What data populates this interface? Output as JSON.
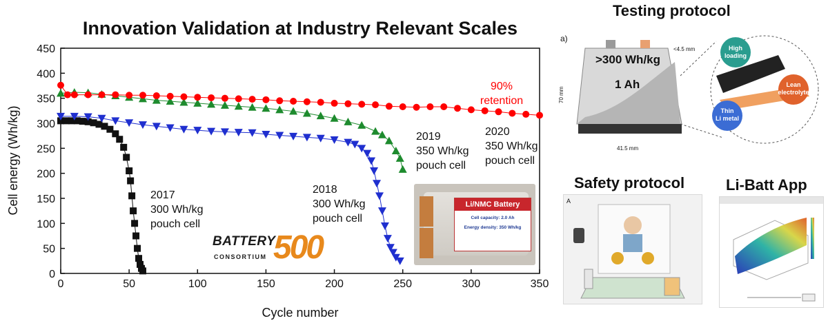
{
  "chart_data": {
    "type": "scatter",
    "title": "Innovation Validation at Industry Relevant Scales",
    "xlabel": "Cycle number",
    "ylabel": "Cell energy (Wh/kg)",
    "xlim": [
      0,
      350
    ],
    "ylim": [
      0,
      450
    ],
    "xticks": [
      0,
      50,
      100,
      150,
      200,
      250,
      300,
      350
    ],
    "yticks": [
      0,
      50,
      100,
      150,
      200,
      250,
      300,
      350,
      400,
      450
    ],
    "grid": false,
    "series": [
      {
        "label": [
          "2017",
          "300 Wh/kg",
          "pouch cell"
        ],
        "color": "#111111",
        "marker": "square",
        "points": [
          [
            0,
            305
          ],
          [
            4,
            305
          ],
          [
            8,
            305
          ],
          [
            12,
            305
          ],
          [
            16,
            304
          ],
          [
            20,
            303
          ],
          [
            24,
            301
          ],
          [
            28,
            298
          ],
          [
            32,
            294
          ],
          [
            36,
            288
          ],
          [
            40,
            279
          ],
          [
            43,
            268
          ],
          [
            46,
            252
          ],
          [
            48,
            232
          ],
          [
            50,
            205
          ],
          [
            51,
            185
          ],
          [
            52,
            155
          ],
          [
            53,
            125
          ],
          [
            54,
            100
          ],
          [
            55,
            75
          ],
          [
            56,
            50
          ],
          [
            57,
            30
          ],
          [
            58,
            18
          ],
          [
            59,
            10
          ],
          [
            60,
            5
          ]
        ]
      },
      {
        "label": [
          "2018",
          "300 Wh/kg",
          "pouch cell"
        ],
        "color": "#1f2fcf",
        "marker": "triangle-down",
        "points": [
          [
            0,
            314
          ],
          [
            10,
            314
          ],
          [
            20,
            313
          ],
          [
            30,
            310
          ],
          [
            40,
            305
          ],
          [
            50,
            301
          ],
          [
            60,
            297
          ],
          [
            70,
            294
          ],
          [
            80,
            291
          ],
          [
            90,
            288
          ],
          [
            100,
            286
          ],
          [
            110,
            284
          ],
          [
            120,
            283
          ],
          [
            130,
            282
          ],
          [
            140,
            281
          ],
          [
            150,
            278
          ],
          [
            160,
            276
          ],
          [
            170,
            274
          ],
          [
            180,
            272
          ],
          [
            190,
            270
          ],
          [
            200,
            267
          ],
          [
            210,
            262
          ],
          [
            215,
            258
          ],
          [
            220,
            250
          ],
          [
            224,
            240
          ],
          [
            227,
            225
          ],
          [
            229,
            205
          ],
          [
            231,
            180
          ],
          [
            233,
            155
          ],
          [
            235,
            125
          ],
          [
            237,
            95
          ],
          [
            239,
            70
          ],
          [
            241,
            52
          ],
          [
            243,
            42
          ],
          [
            245,
            32
          ],
          [
            248,
            25
          ]
        ]
      },
      {
        "label": [
          "2019",
          "350 Wh/kg",
          "pouch cell"
        ],
        "color": "#1e8b2e",
        "marker": "triangle-up",
        "points": [
          [
            0,
            360
          ],
          [
            10,
            362
          ],
          [
            20,
            361
          ],
          [
            30,
            358
          ],
          [
            40,
            355
          ],
          [
            50,
            352
          ],
          [
            60,
            349
          ],
          [
            70,
            346
          ],
          [
            80,
            344
          ],
          [
            90,
            342
          ],
          [
            100,
            340
          ],
          [
            110,
            338
          ],
          [
            120,
            336
          ],
          [
            130,
            334
          ],
          [
            140,
            332
          ],
          [
            150,
            330
          ],
          [
            160,
            327
          ],
          [
            170,
            324
          ],
          [
            180,
            320
          ],
          [
            190,
            315
          ],
          [
            200,
            310
          ],
          [
            210,
            303
          ],
          [
            220,
            296
          ],
          [
            230,
            284
          ],
          [
            235,
            277
          ],
          [
            240,
            265
          ],
          [
            245,
            245
          ],
          [
            248,
            230
          ],
          [
            250,
            208
          ]
        ]
      },
      {
        "label": [
          "2020",
          "350 Wh/kg",
          "pouch cell"
        ],
        "color": "#ff0000",
        "marker": "circle",
        "points": [
          [
            0,
            376
          ],
          [
            5,
            357
          ],
          [
            10,
            357
          ],
          [
            20,
            357
          ],
          [
            30,
            357
          ],
          [
            40,
            357
          ],
          [
            50,
            356
          ],
          [
            60,
            356
          ],
          [
            70,
            355
          ],
          [
            80,
            354
          ],
          [
            90,
            353
          ],
          [
            100,
            352
          ],
          [
            110,
            351
          ],
          [
            120,
            350
          ],
          [
            130,
            349
          ],
          [
            140,
            348
          ],
          [
            150,
            347
          ],
          [
            160,
            345
          ],
          [
            170,
            344
          ],
          [
            180,
            343
          ],
          [
            190,
            342
          ],
          [
            200,
            340
          ],
          [
            210,
            339
          ],
          [
            220,
            338
          ],
          [
            230,
            337
          ],
          [
            240,
            334
          ],
          [
            250,
            333
          ],
          [
            260,
            332
          ],
          [
            270,
            333
          ],
          [
            280,
            333
          ],
          [
            290,
            330
          ],
          [
            300,
            327
          ],
          [
            310,
            325
          ],
          [
            320,
            323
          ],
          [
            330,
            320
          ],
          [
            340,
            318
          ],
          [
            350,
            316
          ]
        ]
      }
    ],
    "annotations": {
      "retention": [
        "90%",
        "retention"
      ],
      "retention_color": "#ff0000"
    }
  },
  "cell_photo": {
    "label_title": "Li/NMC Battery",
    "capacity_line": "Cell capacity: 2.0 Ah",
    "density_line": "Energy density: 350 Wh/kg"
  },
  "logo": {
    "battery": "BATTERY",
    "consortium": "CONSORTIUM",
    "number": "500"
  },
  "testing_protocol": {
    "title": "Testing protocol",
    "panel_letter": "a)",
    "energy": ">300 Wh/kg",
    "capacity": "1 Ah",
    "thickness": "<4.5 mm",
    "height": "70 mm",
    "width": "41.5 mm",
    "callouts": [
      "High loading",
      "Lean electrolyte",
      "Thin Li metal"
    ]
  },
  "safety_protocol": {
    "title": "Safety protocol",
    "panel_letter": "A"
  },
  "app": {
    "title": "Li-Batt App"
  }
}
